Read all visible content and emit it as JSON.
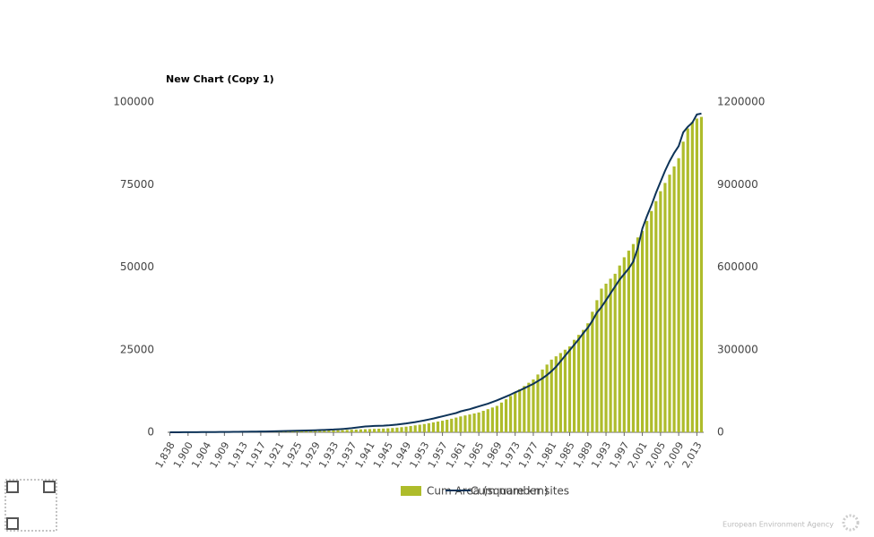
{
  "chart_data": {
    "type": "bar",
    "title": "New Chart (Copy 1)",
    "categories": [
      "1,838",
      null,
      null,
      null,
      "1,900",
      null,
      null,
      null,
      "1,904",
      null,
      null,
      null,
      "1,909",
      null,
      null,
      null,
      "1,913",
      null,
      null,
      null,
      "1,917",
      null,
      null,
      null,
      "1,921",
      null,
      null,
      null,
      "1,925",
      null,
      null,
      null,
      "1,929",
      null,
      null,
      null,
      "1,933",
      null,
      null,
      null,
      "1,937",
      null,
      null,
      null,
      "1,941",
      null,
      null,
      null,
      "1,945",
      null,
      null,
      null,
      "1,949",
      null,
      null,
      null,
      "1,953",
      null,
      null,
      null,
      "1,957",
      null,
      null,
      null,
      "1,961",
      null,
      null,
      null,
      "1,965",
      null,
      null,
      null,
      "1,969",
      null,
      null,
      null,
      "1,973",
      null,
      null,
      null,
      "1,977",
      null,
      null,
      null,
      "1,981",
      null,
      null,
      null,
      "1,985",
      null,
      null,
      null,
      "1,989",
      null,
      null,
      null,
      "1,993",
      null,
      null,
      null,
      "1,997",
      null,
      null,
      null,
      "2,001",
      null,
      null,
      null,
      "2,005",
      null,
      null,
      null,
      "2,009",
      null,
      null,
      null,
      "2,013",
      null
    ],
    "series": [
      {
        "name": "Cum Area (square km)",
        "type": "bar",
        "color": "#aebc2b",
        "values": [
          5,
          10,
          15,
          20,
          25,
          30,
          35,
          40,
          45,
          50,
          55,
          60,
          70,
          80,
          90,
          100,
          110,
          120,
          130,
          140,
          150,
          160,
          180,
          200,
          220,
          240,
          260,
          280,
          300,
          330,
          360,
          390,
          420,
          460,
          500,
          540,
          580,
          620,
          660,
          720,
          780,
          830,
          880,
          930,
          980,
          1030,
          1080,
          1130,
          1200,
          1300,
          1400,
          1550,
          1700,
          1900,
          2100,
          2300,
          2500,
          2750,
          3000,
          3250,
          3500,
          3800,
          4100,
          4450,
          4800,
          5100,
          5400,
          5700,
          6000,
          6500,
          7000,
          7500,
          8000,
          9000,
          10000,
          11000,
          12000,
          13000,
          14000,
          15000,
          16000,
          17500,
          19000,
          20500,
          22000,
          23000,
          24000,
          25000,
          26000,
          28000,
          29500,
          31000,
          33000,
          36500,
          40000,
          43500,
          45000,
          46500,
          48000,
          50500,
          53000,
          55000,
          57000,
          59000,
          61000,
          64000,
          67000,
          70000,
          73000,
          75500,
          78000,
          80500,
          83000,
          88000,
          92000,
          94000,
          95000,
          95500
        ]
      },
      {
        "name": "Cum number sites",
        "type": "line",
        "axis": "y2",
        "color": "#0d3358",
        "values": [
          0,
          100,
          200,
          300,
          400,
          500,
          600,
          700,
          800,
          900,
          1000,
          1100,
          1200,
          1400,
          1600,
          1800,
          2000,
          2200,
          2400,
          2600,
          2800,
          3000,
          3300,
          3600,
          4000,
          4400,
          4800,
          5200,
          5600,
          6000,
          6500,
          7000,
          7500,
          8000,
          8700,
          9400,
          10000,
          11000,
          12000,
          13500,
          15000,
          17000,
          19000,
          21000,
          22000,
          23000,
          23500,
          24000,
          25000,
          26500,
          28000,
          30000,
          32000,
          34500,
          37000,
          40000,
          43000,
          46500,
          50000,
          54000,
          58000,
          62000,
          66000,
          70000,
          76000,
          80000,
          84000,
          89000,
          94000,
          99000,
          104000,
          110000,
          116000,
          123000,
          130000,
          137000,
          145000,
          152000,
          160000,
          168000,
          176000,
          186000,
          196000,
          208000,
          222000,
          238000,
          258000,
          278000,
          298000,
          318000,
          338000,
          360000,
          380000,
          405000,
          435000,
          455000,
          480000,
          505000,
          530000,
          555000,
          575000,
          595000,
          620000,
          670000,
          740000,
          785000,
          825000,
          870000,
          910000,
          950000,
          985000,
          1015000,
          1040000,
          1090000,
          1110000,
          1125000,
          1155000,
          1158000
        ]
      }
    ],
    "ylim": [
      0,
      100000
    ],
    "yticks": [
      0,
      25000,
      50000,
      75000,
      100000
    ],
    "y2lim": [
      0,
      1200000
    ],
    "y2ticks": [
      0,
      300000,
      600000,
      900000,
      1200000
    ],
    "grid": false
  },
  "footer": "European Environment Agency"
}
